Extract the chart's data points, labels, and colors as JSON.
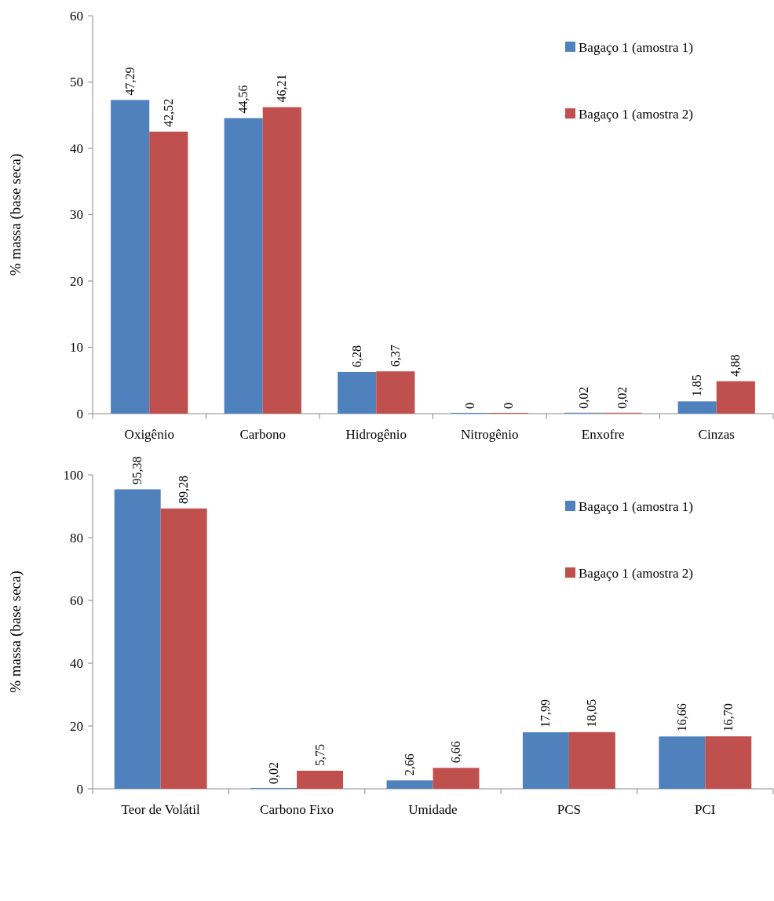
{
  "chart_data": [
    {
      "type": "bar",
      "ylabel": "% massa (base seca)",
      "categories": [
        "Oxigênio",
        "Carbono",
        "Hidrogênio",
        "Nitrogênio",
        "Enxofre",
        "Cinzas"
      ],
      "ylim": [
        0,
        60
      ],
      "yticks": [
        0,
        10,
        20,
        30,
        40,
        50,
        60
      ],
      "legend": "top right",
      "series": [
        {
          "name": "Bagaço 1 (amostra 1)",
          "color": "#4f81bd",
          "values": [
            47.29,
            44.56,
            6.28,
            0,
            0.02,
            1.85
          ],
          "value_labels": [
            "47,29",
            "44,56",
            "6,28",
            "0",
            "0,02",
            "1,85"
          ]
        },
        {
          "name": "Bagaço 1 (amostra 2)",
          "color": "#c0504d",
          "values": [
            42.52,
            46.21,
            6.37,
            0,
            0.02,
            4.88
          ],
          "value_labels": [
            "42,52",
            "46,21",
            "6,37",
            "0",
            "0,02",
            "4,88"
          ]
        }
      ]
    },
    {
      "type": "bar",
      "ylabel": "% massa (base seca)",
      "categories": [
        "Teor de Volátil",
        "Carbono Fixo",
        "Umidade",
        "PCS",
        "PCI"
      ],
      "ylim": [
        0,
        100
      ],
      "yticks": [
        0,
        20,
        40,
        60,
        80,
        100
      ],
      "legend": "top right",
      "series": [
        {
          "name": "Bagaço 1 (amostra 1)",
          "color": "#4f81bd",
          "values": [
            95.38,
            0.02,
            2.66,
            17.99,
            16.66
          ],
          "value_labels": [
            "95,38",
            "0,02",
            "2,66",
            "17,99",
            "16,66"
          ]
        },
        {
          "name": "Bagaço 1 (amostra 2)",
          "color": "#c0504d",
          "values": [
            89.28,
            5.75,
            6.66,
            18.05,
            16.7
          ],
          "value_labels": [
            "89,28",
            "5,75",
            "6,66",
            "18,05",
            "16,70"
          ]
        }
      ]
    }
  ]
}
